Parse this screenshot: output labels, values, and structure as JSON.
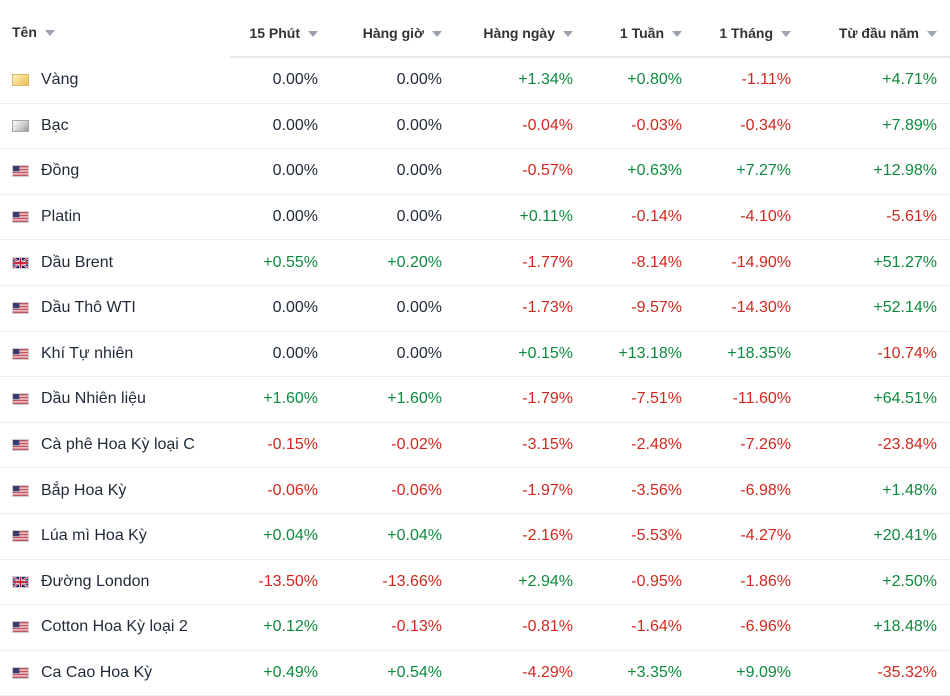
{
  "columns": {
    "name": "Tên",
    "m15": "15 Phút",
    "hourly": "Hàng giờ",
    "daily": "Hàng ngày",
    "week": "1 Tuần",
    "month": "1 Tháng",
    "ytd": "Từ đầu năm"
  },
  "icons": {
    "gold": "gold-bar-icon",
    "silver": "silver-bar-icon",
    "us": "us-flag-icon",
    "uk": "uk-flag-icon"
  },
  "rows": [
    {
      "name": "Vàng",
      "icon": "gold",
      "m15": "0.00%",
      "hourly": "0.00%",
      "daily": "+1.34%",
      "week": "+0.80%",
      "month": "-1.11%",
      "ytd": "+4.71%"
    },
    {
      "name": "Bạc",
      "icon": "silver",
      "m15": "0.00%",
      "hourly": "0.00%",
      "daily": "-0.04%",
      "week": "-0.03%",
      "month": "-0.34%",
      "ytd": "+7.89%"
    },
    {
      "name": "Đồng",
      "icon": "us",
      "m15": "0.00%",
      "hourly": "0.00%",
      "daily": "-0.57%",
      "week": "+0.63%",
      "month": "+7.27%",
      "ytd": "+12.98%"
    },
    {
      "name": "Platin",
      "icon": "us",
      "m15": "0.00%",
      "hourly": "0.00%",
      "daily": "+0.11%",
      "week": "-0.14%",
      "month": "-4.10%",
      "ytd": "-5.61%"
    },
    {
      "name": "Dầu Brent",
      "icon": "uk",
      "m15": "+0.55%",
      "hourly": "+0.20%",
      "daily": "-1.77%",
      "week": "-8.14%",
      "month": "-14.90%",
      "ytd": "+51.27%"
    },
    {
      "name": "Dầu Thô WTI",
      "icon": "us",
      "m15": "0.00%",
      "hourly": "0.00%",
      "daily": "-1.73%",
      "week": "-9.57%",
      "month": "-14.30%",
      "ytd": "+52.14%"
    },
    {
      "name": "Khí Tự nhiên",
      "icon": "us",
      "m15": "0.00%",
      "hourly": "0.00%",
      "daily": "+0.15%",
      "week": "+13.18%",
      "month": "+18.35%",
      "ytd": "-10.74%"
    },
    {
      "name": "Dầu Nhiên liệu",
      "icon": "us",
      "m15": "+1.60%",
      "hourly": "+1.60%",
      "daily": "-1.79%",
      "week": "-7.51%",
      "month": "-11.60%",
      "ytd": "+64.51%"
    },
    {
      "name": "Cà phê Hoa Kỳ loại C",
      "icon": "us",
      "m15": "-0.15%",
      "hourly": "-0.02%",
      "daily": "-3.15%",
      "week": "-2.48%",
      "month": "-7.26%",
      "ytd": "-23.84%"
    },
    {
      "name": "Bắp Hoa Kỳ",
      "icon": "us",
      "m15": "-0.06%",
      "hourly": "-0.06%",
      "daily": "-1.97%",
      "week": "-3.56%",
      "month": "-6.98%",
      "ytd": "+1.48%"
    },
    {
      "name": "Lúa mì Hoa Kỳ",
      "icon": "us",
      "m15": "+0.04%",
      "hourly": "+0.04%",
      "daily": "-2.16%",
      "week": "-5.53%",
      "month": "-4.27%",
      "ytd": "+20.41%"
    },
    {
      "name": "Đường London",
      "icon": "uk",
      "m15": "-13.50%",
      "hourly": "-13.66%",
      "daily": "+2.94%",
      "week": "-0.95%",
      "month": "-1.86%",
      "ytd": "+2.50%"
    },
    {
      "name": "Cotton Hoa Kỳ loại 2",
      "icon": "us",
      "m15": "+0.12%",
      "hourly": "-0.13%",
      "daily": "-0.81%",
      "week": "-1.64%",
      "month": "-6.96%",
      "ytd": "+18.48%"
    },
    {
      "name": "Ca Cao Hoa Kỳ",
      "icon": "us",
      "m15": "+0.49%",
      "hourly": "+0.54%",
      "daily": "-4.29%",
      "week": "+3.35%",
      "month": "+9.09%",
      "ytd": "-35.32%"
    }
  ],
  "colors": {
    "positive": "#0e8a3e",
    "negative": "#d0281f",
    "neutral": "#1f2937"
  }
}
